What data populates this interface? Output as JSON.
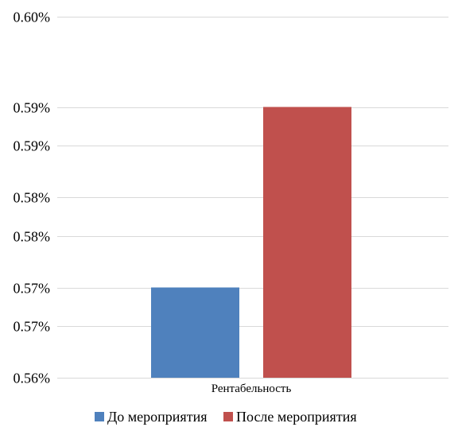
{
  "chart_data": {
    "type": "bar",
    "categories": [
      "Рентабельность"
    ],
    "series": [
      {
        "name": "До мероприятия",
        "values": [
          0.57
        ],
        "color": "#4F81BD"
      },
      {
        "name": "После мероприятия",
        "values": [
          0.59
        ],
        "color": "#C0504D"
      }
    ],
    "ylim": [
      0.56,
      0.6
    ],
    "yticks": [
      {
        "value": 0.56,
        "label": "0.56%"
      },
      {
        "value": 0.5657,
        "label": "0.57%"
      },
      {
        "value": 0.57,
        "label": "0.57%"
      },
      {
        "value": 0.5757,
        "label": "0.58%"
      },
      {
        "value": 0.58,
        "label": "0.58%"
      },
      {
        "value": 0.5857,
        "label": "0.59%"
      },
      {
        "value": 0.59,
        "label": "0.59%"
      },
      {
        "value": 0.6,
        "label": "0.60%"
      }
    ],
    "grid": true,
    "legend": "bottom",
    "gridColor": "#D9D9D9"
  }
}
